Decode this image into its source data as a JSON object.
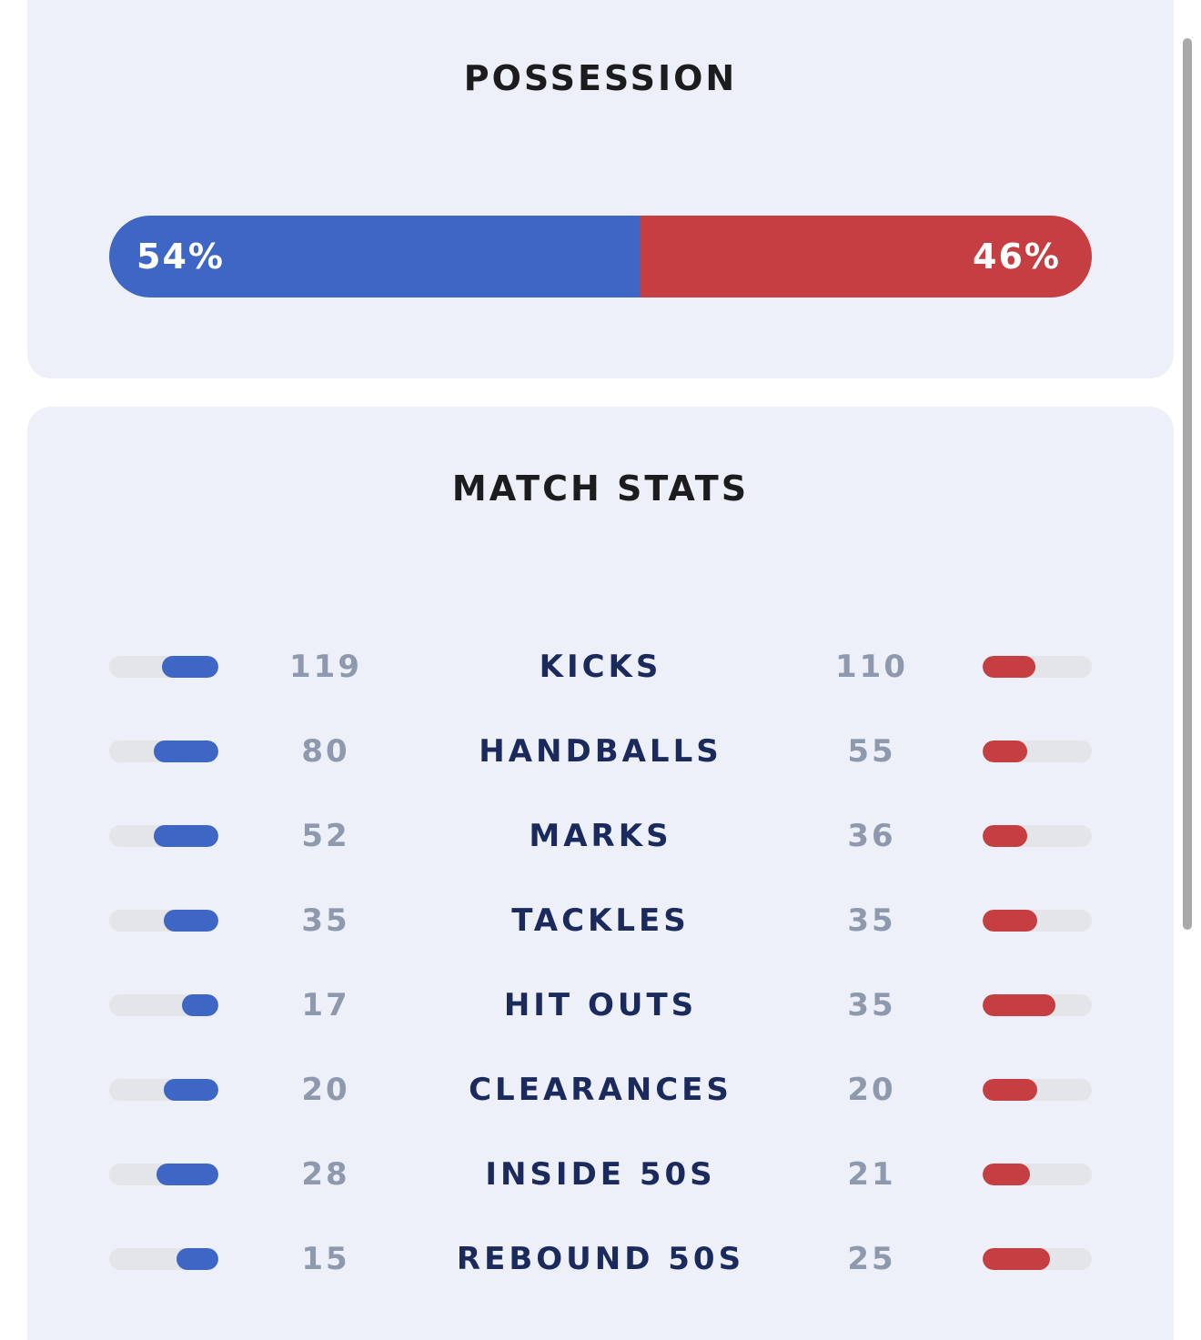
{
  "possession": {
    "title": "POSSESSION",
    "home_label": "54%",
    "away_label": "46%",
    "home_share": 0.54,
    "away_share": 0.46
  },
  "match_stats": {
    "title": "MATCH STATS",
    "rows": [
      {
        "label": "KICKS",
        "home": "119",
        "away": "110",
        "home_bar": 0.52,
        "away_bar": 0.48
      },
      {
        "label": "HANDBALLS",
        "home": "80",
        "away": "55",
        "home_bar": 0.59,
        "away_bar": 0.41
      },
      {
        "label": "MARKS",
        "home": "52",
        "away": "36",
        "home_bar": 0.59,
        "away_bar": 0.41
      },
      {
        "label": "TACKLES",
        "home": "35",
        "away": "35",
        "home_bar": 0.5,
        "away_bar": 0.5
      },
      {
        "label": "HIT OUTS",
        "home": "17",
        "away": "35",
        "home_bar": 0.33,
        "away_bar": 0.67
      },
      {
        "label": "CLEARANCES",
        "home": "20",
        "away": "20",
        "home_bar": 0.5,
        "away_bar": 0.5
      },
      {
        "label": "INSIDE 50S",
        "home": "28",
        "away": "21",
        "home_bar": 0.57,
        "away_bar": 0.43
      },
      {
        "label": "REBOUND 50S",
        "home": "15",
        "away": "25",
        "home_bar": 0.38,
        "away_bar": 0.62
      }
    ]
  },
  "colors": {
    "home": "#3e66c4",
    "away": "#c53e42",
    "track": "#e4e5e8",
    "card": "#edf0f8",
    "stat_label": "#1b2a5c",
    "stat_value": "#8e99ae"
  }
}
